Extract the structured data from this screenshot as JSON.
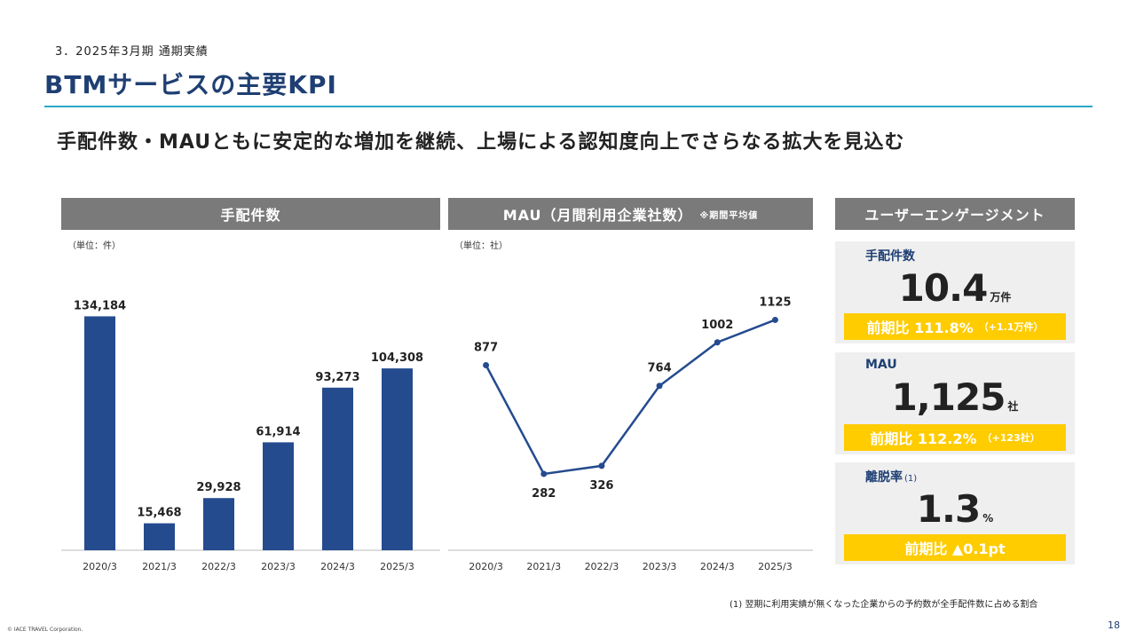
{
  "section_label": "3．2025年3月期 通期実績",
  "page_title": "BTMサービスの主要KPI",
  "headline": "手配件数・MAUともに安定的な増加を継続、上場による認知度向上でさらなる拡大を見込む",
  "panels": {
    "arrangements": {
      "title": "手配件数",
      "unit": "（単位：件）"
    },
    "mau": {
      "title": "MAU（月間利用企業社数）",
      "note": "※期間平均値",
      "unit": "（単位：社）"
    },
    "engagement": {
      "title": "ユーザーエンゲージメント"
    }
  },
  "chart_data": [
    {
      "type": "bar",
      "title": "手配件数",
      "unit_label": "（単位：件）",
      "categories": [
        "2020/3",
        "2021/3",
        "2022/3",
        "2023/3",
        "2024/3",
        "2025/3"
      ],
      "values": [
        134184,
        15468,
        29928,
        61914,
        93273,
        104308
      ],
      "data_labels": [
        "134,184",
        "15,468",
        "29,928",
        "61,914",
        "93,273",
        "104,308"
      ],
      "ylim": [
        0,
        140000
      ],
      "color": "#254b8f",
      "grid": false
    },
    {
      "type": "line",
      "title": "MAU（月間利用企業社数）",
      "unit_label": "（単位：社）",
      "categories": [
        "2020/3",
        "2021/3",
        "2022/3",
        "2023/3",
        "2024/3",
        "2025/3"
      ],
      "values": [
        877,
        282,
        326,
        764,
        1002,
        1125
      ],
      "data_labels": [
        "877",
        "282",
        "326",
        "764",
        "1002",
        "1125"
      ],
      "ylim": [
        0,
        1200
      ],
      "color": "#254b8f",
      "grid": false
    }
  ],
  "cards": [
    {
      "label": "手配件数",
      "label_sup": "",
      "value": "10.4",
      "unit": "万件",
      "badge": "前期比 111.8%",
      "badge_small": "（+1.1万件）"
    },
    {
      "label": "MAU",
      "label_sup": "",
      "value": "1,125",
      "unit": "社",
      "badge": "前期比 112.2%",
      "badge_small": "（+123社）"
    },
    {
      "label": "離脱率",
      "label_sup": "(1)",
      "value": "1.3",
      "unit": "%",
      "badge": "前期比 ▲0.1pt",
      "badge_small": ""
    }
  ],
  "footnote": "(1) 翌期に利用実績が無くなった企業からの予約数が全手配件数に占める割合",
  "copyright": "© IACE TRAVEL Corporation.",
  "page_number": "18",
  "colors": {
    "title": "#1f3f73",
    "accent_rule": "#2aa7c9",
    "bar": "#254b8f",
    "badge": "#ffcc00",
    "header_gray": "#7a7a7a"
  }
}
